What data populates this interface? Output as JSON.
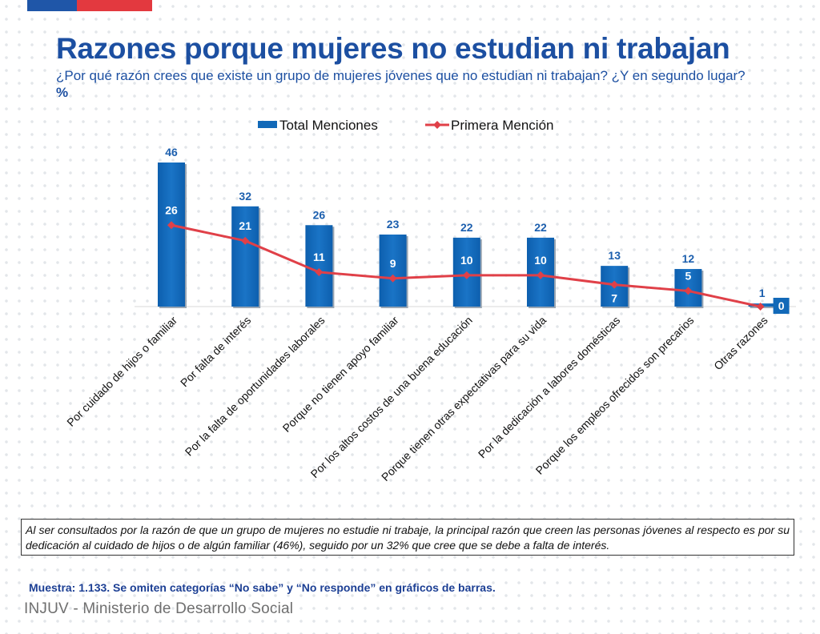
{
  "header": {
    "title": "Razones porque mujeres no estudian ni trabajan",
    "subtitle": "¿Por qué razón crees que existe un grupo de mujeres jóvenes que no estudian ni trabajan? ¿Y en segundo lugar?",
    "subtitle_unit": "%"
  },
  "chart_data": {
    "type": "bar",
    "categories": [
      "Por cuidado de hijos o familiar",
      "Por falta de interés",
      "Por la falta de oportunidades laborales",
      "Porque no tienen apoyo familiar",
      "Por los altos costos de una buena educación",
      "Porque tienen otras expectativas para su vida",
      "Por la dedicación a labores domésticas",
      "Porque los empleos ofrecidos son precarios",
      "Otras razones"
    ],
    "series": [
      {
        "name": "Total Menciones",
        "type": "bar",
        "values": [
          46,
          32,
          26,
          23,
          22,
          22,
          13,
          12,
          1
        ]
      },
      {
        "name": "Primera Mención",
        "type": "line",
        "values": [
          26,
          21,
          11,
          9,
          10,
          10,
          7,
          5,
          0
        ]
      }
    ],
    "ylim": [
      0,
      50
    ],
    "grid": false,
    "legend": "top",
    "colors": {
      "bar": "#1269b8",
      "line": "#e04048",
      "label_blue": "#1c5fae"
    }
  },
  "note": "Al ser consultados por la razón de que un grupo de mujeres no estudie ni trabaje, la principal razón que creen las personas jóvenes al respecto es por su dedicación al cuidado de hijos o de algún familiar (46%), seguido por un 32% que cree que se debe a falta de interés.",
  "sample": "Muestra: 1.133. Se omiten categorías “No sabe” y “No responde” en gráficos de barras.",
  "footer": {
    "org": "INJUV - Ministerio de Desarrollo Social"
  },
  "brand": {
    "blue": "#1f56a8",
    "red": "#e3393f"
  }
}
